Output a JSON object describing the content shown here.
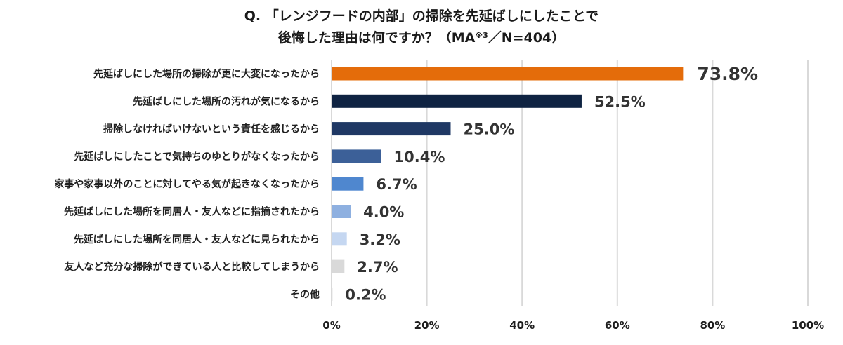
{
  "chart_data": {
    "type": "bar",
    "orientation": "horizontal",
    "title_line1": "Q. 「レンジフードの内部」の掃除を先延ばしにしたことで",
    "title_line2_main": "後悔した理由は何ですか？（MA",
    "title_line2_sup": "※3",
    "title_line2_end": "／N=404）",
    "categories": [
      "先延ばしにした場所の掃除が更に大変になったから",
      "先延ばしにした場所の汚れが気になるから",
      "掃除しなければいけないという責任を感じるから",
      "先延ばしにしたことで気持ちのゆとりがなくなったから",
      "家事や家事以外のことに対してやる気が起きなくなったから",
      "先延ばしにした場所を同居人・友人などに指摘されたから",
      "先延ばしにした場所を同居人・友人などに見られたから",
      "友人など充分な掃除ができている人と比較してしまうから",
      "その他"
    ],
    "values": [
      73.8,
      52.5,
      25.0,
      10.4,
      6.7,
      4.0,
      3.2,
      2.7,
      0.2
    ],
    "value_labels": [
      "73.8%",
      "52.5%",
      "25.0%",
      "10.4%",
      "6.7%",
      "4.0%",
      "3.2%",
      "2.7%",
      "0.2%"
    ],
    "bar_colors": [
      "#e46c0a",
      "#0f2342",
      "#1f3864",
      "#3c6098",
      "#4f87cf",
      "#8eb0e0",
      "#c5d7f1",
      "#d9d9d9",
      "#d9d9d9"
    ],
    "xlim": [
      0,
      100
    ],
    "x_ticks": [
      0,
      20,
      40,
      60,
      80,
      100
    ],
    "x_tick_labels": [
      "0%",
      "20%",
      "40%",
      "60%",
      "80%",
      "100%"
    ],
    "grid": true,
    "gridline_color": "#d9d9d9"
  }
}
